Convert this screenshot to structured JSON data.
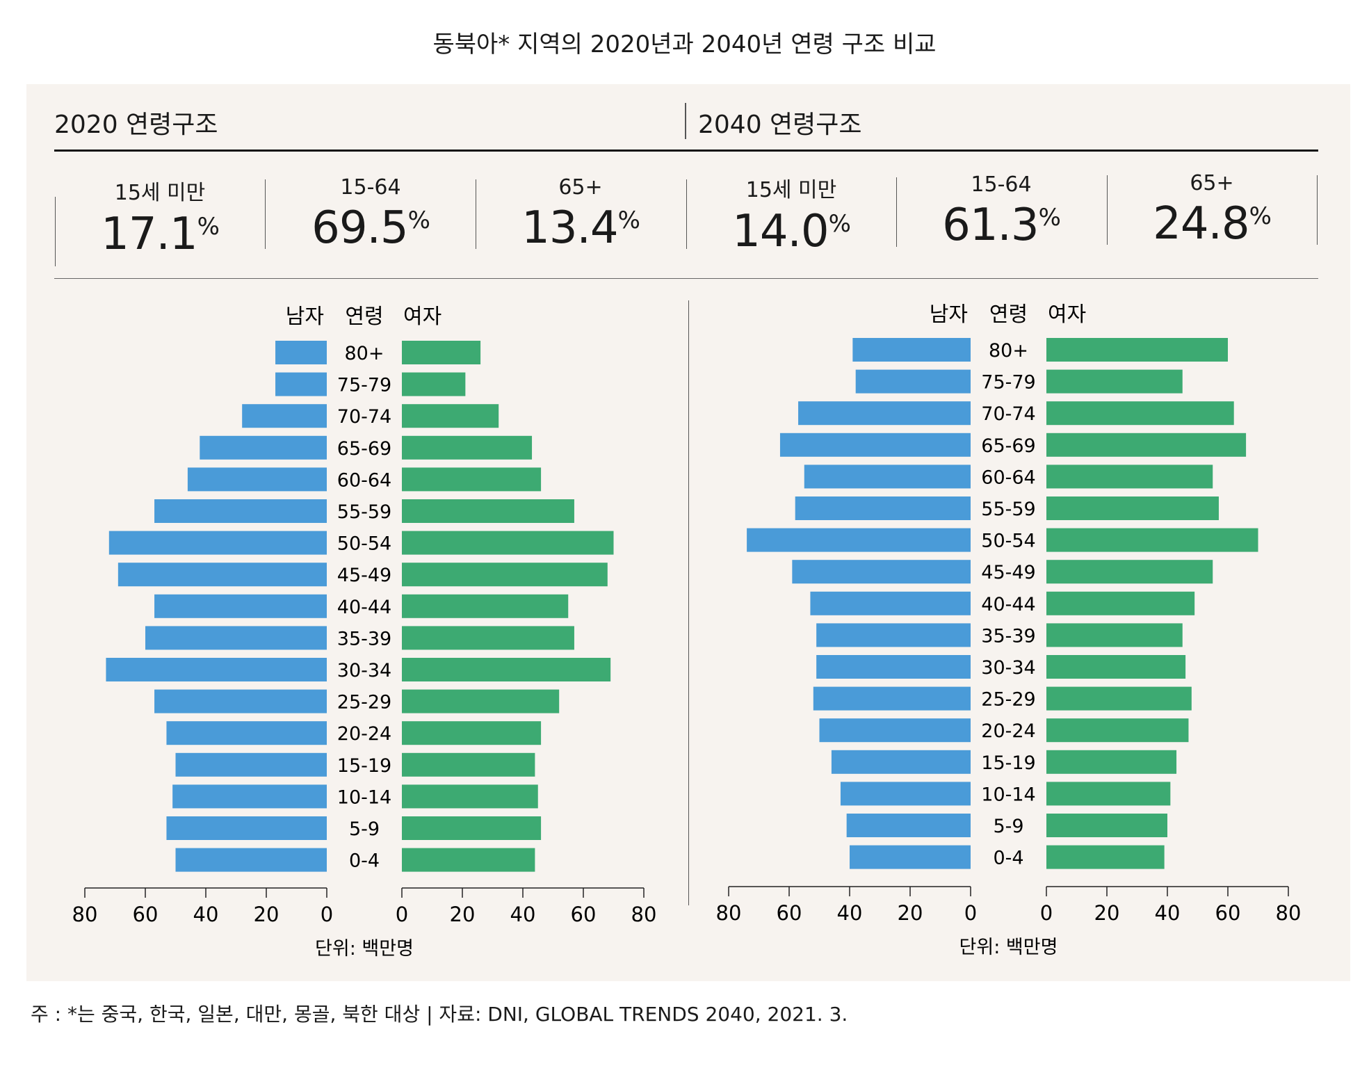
{
  "title": "동북아* 지역의 2020년과 2040년 연령 구조 비교",
  "sections": [
    {
      "heading": "2020 연령구조",
      "stats": [
        {
          "label": "15세 미만",
          "value": "17.1",
          "unit": "%"
        },
        {
          "label": "15-64",
          "value": "69.5",
          "unit": "%"
        },
        {
          "label": "65+",
          "value": "13.4",
          "unit": "%"
        }
      ]
    },
    {
      "heading": "2040 연령구조",
      "stats": [
        {
          "label": "15세 미만",
          "value": "14.0",
          "unit": "%"
        },
        {
          "label": "15-64",
          "value": "61.3",
          "unit": "%"
        },
        {
          "label": "65+",
          "value": "24.8",
          "unit": "%"
        }
      ]
    }
  ],
  "colors": {
    "male": "#4a9bd8",
    "female": "#3daa72",
    "panel": "#f7f3ef"
  },
  "chart_data": [
    {
      "type": "bar",
      "orientation": "horizontal-pyramid",
      "header_left": "남자",
      "header_center": "연령",
      "header_right": "여자",
      "categories": [
        "80+",
        "75-79",
        "70-74",
        "65-69",
        "60-64",
        "55-59",
        "50-54",
        "45-49",
        "40-44",
        "35-39",
        "30-34",
        "25-29",
        "20-24",
        "15-19",
        "10-14",
        "5-9",
        "0-4"
      ],
      "series": [
        {
          "name": "남자",
          "values": [
            17,
            17,
            28,
            42,
            46,
            57,
            72,
            69,
            57,
            60,
            73,
            57,
            53,
            50,
            51,
            53,
            50
          ]
        },
        {
          "name": "여자",
          "values": [
            26,
            21,
            32,
            43,
            46,
            57,
            70,
            68,
            55,
            57,
            69,
            52,
            46,
            44,
            45,
            46,
            44
          ]
        }
      ],
      "xlim": [
        0,
        80
      ],
      "ticks_left": [
        "80",
        "60",
        "40",
        "20",
        "0"
      ],
      "ticks_right": [
        "0",
        "20",
        "40",
        "60",
        "80"
      ],
      "unit_label": "단위: 백만명"
    },
    {
      "type": "bar",
      "orientation": "horizontal-pyramid",
      "header_left": "남자",
      "header_center": "연령",
      "header_right": "여자",
      "categories": [
        "80+",
        "75-79",
        "70-74",
        "65-69",
        "60-64",
        "55-59",
        "50-54",
        "45-49",
        "40-44",
        "35-39",
        "30-34",
        "25-29",
        "20-24",
        "15-19",
        "10-14",
        "5-9",
        "0-4"
      ],
      "series": [
        {
          "name": "남자",
          "values": [
            39,
            38,
            57,
            63,
            55,
            58,
            74,
            59,
            53,
            51,
            51,
            52,
            50,
            46,
            43,
            41,
            40
          ]
        },
        {
          "name": "여자",
          "values": [
            60,
            45,
            62,
            66,
            55,
            57,
            70,
            55,
            49,
            45,
            46,
            48,
            47,
            43,
            41,
            40,
            39
          ]
        }
      ],
      "xlim": [
        0,
        80
      ],
      "ticks_left": [
        "80",
        "60",
        "40",
        "20",
        "0"
      ],
      "ticks_right": [
        "0",
        "20",
        "40",
        "60",
        "80"
      ],
      "unit_label": "단위: 백만명"
    }
  ],
  "footnote": "주 : *는 중국, 한국, 일본, 대만, 몽골, 북한 대상 | 자료: DNI, GLOBAL TRENDS 2040, 2021. 3."
}
